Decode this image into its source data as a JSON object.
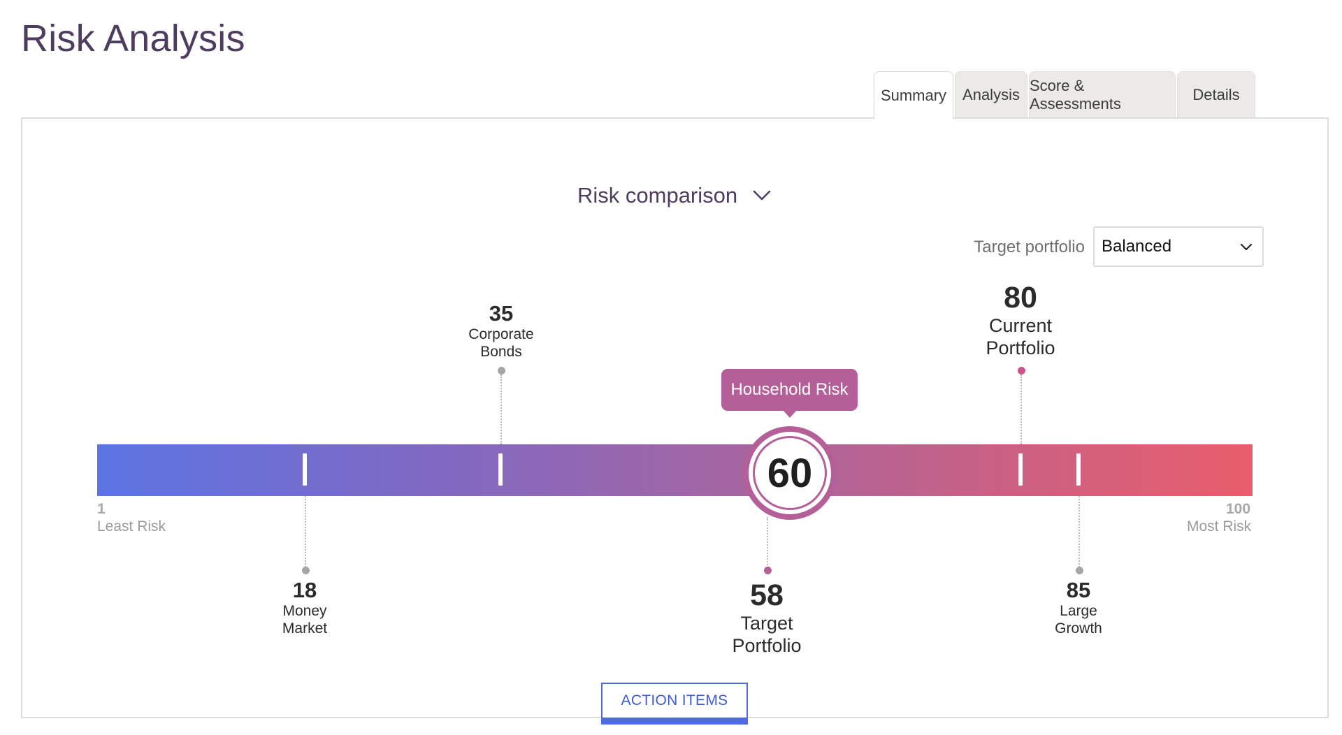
{
  "page": {
    "title": "Risk Analysis"
  },
  "tabs": [
    {
      "label": "Summary",
      "active": true
    },
    {
      "label": "Analysis",
      "active": false
    },
    {
      "label": "Score & Assessments",
      "active": false
    },
    {
      "label": "Details",
      "active": false
    }
  ],
  "comparison": {
    "title": "Risk comparison",
    "icon": "chevron-down-icon"
  },
  "target_portfolio": {
    "label": "Target portfolio",
    "selected": "Balanced"
  },
  "scale": {
    "min": 1,
    "max": 100,
    "min_label": "Least Risk",
    "max_label": "Most Risk"
  },
  "household": {
    "label": "Household Risk",
    "value": 60
  },
  "markers": [
    {
      "value": 35,
      "label": "Corporate Bonds",
      "side": "above"
    },
    {
      "value": 80,
      "label": "Current Portfolio",
      "side": "above",
      "emphasis": true
    },
    {
      "value": 18,
      "label": "Money Market",
      "side": "below"
    },
    {
      "value": 58,
      "label": "Target Portfolio",
      "side": "below",
      "emphasis": true
    },
    {
      "value": 85,
      "label": "Large Growth",
      "side": "below"
    }
  ],
  "colors": {
    "accent": "#b45f98",
    "gradient_start": "#5c75e2",
    "gradient_end": "#e85e6c",
    "action": "#4f6be0"
  },
  "action_button": {
    "label": "ACTION ITEMS"
  }
}
